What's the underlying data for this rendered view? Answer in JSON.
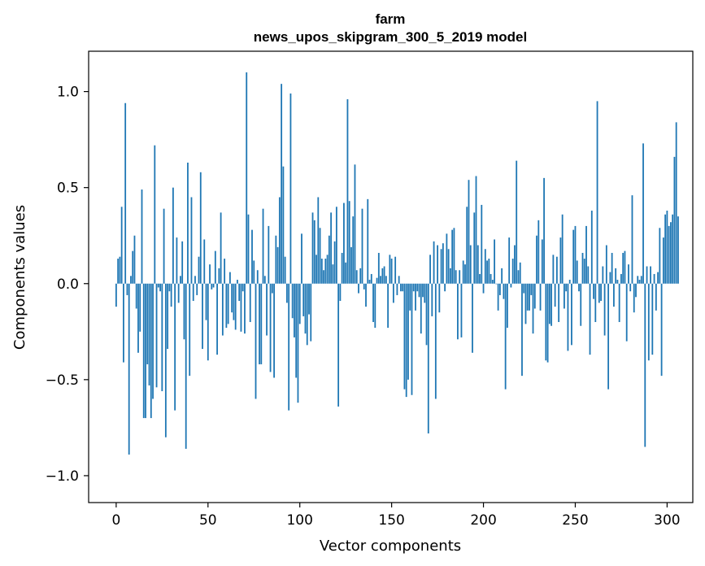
{
  "chart_data": {
    "type": "bar",
    "title_line1": "farm",
    "title_line2": "news_upos_skipgram_300_5_2019 model",
    "xlabel": "Vector components",
    "ylabel": "Components values",
    "xlim": [
      -15,
      314
    ],
    "ylim": [
      -1.14,
      1.21
    ],
    "xticks": [
      0,
      50,
      100,
      150,
      200,
      250,
      300
    ],
    "xtick_labels": [
      "0",
      "50",
      "100",
      "150",
      "200",
      "250",
      "300"
    ],
    "yticks": [
      -1.0,
      -0.5,
      0.0,
      0.5,
      1.0
    ],
    "ytick_labels": [
      "−1.0",
      "−0.5",
      "0.0",
      "0.5",
      "1.0"
    ],
    "bar_color": "#1f77b4",
    "grid": false,
    "values": [
      -0.12,
      0.13,
      0.14,
      0.4,
      -0.41,
      0.94,
      -0.06,
      -0.89,
      0.04,
      0.17,
      0.25,
      -0.13,
      -0.36,
      -0.25,
      0.49,
      -0.7,
      -0.7,
      -0.42,
      -0.53,
      -0.7,
      -0.6,
      0.72,
      -0.54,
      -0.02,
      -0.04,
      -0.56,
      0.39,
      -0.8,
      -0.34,
      -0.04,
      -0.12,
      0.5,
      -0.66,
      0.24,
      -0.1,
      0.04,
      0.22,
      -0.29,
      -0.86,
      0.63,
      -0.48,
      0.45,
      -0.09,
      0.04,
      -0.06,
      0.14,
      0.58,
      -0.34,
      0.23,
      -0.19,
      -0.4,
      0.1,
      -0.03,
      -0.02,
      0.17,
      -0.37,
      0.08,
      0.37,
      -0.27,
      0.13,
      -0.23,
      -0.21,
      0.06,
      -0.15,
      -0.19,
      -0.24,
      0.02,
      -0.09,
      -0.25,
      -0.04,
      -0.26,
      1.1,
      0.36,
      -0.2,
      0.28,
      0.12,
      -0.6,
      0.07,
      -0.42,
      -0.42,
      0.39,
      0.04,
      -0.27,
      0.3,
      -0.46,
      -0.05,
      -0.49,
      0.25,
      0.19,
      0.45,
      1.04,
      0.61,
      0.14,
      -0.1,
      -0.66,
      0.99,
      -0.18,
      -0.28,
      -0.49,
      -0.62,
      -0.21,
      0.26,
      -0.17,
      -0.26,
      -0.32,
      -0.16,
      -0.3,
      0.37,
      0.33,
      0.15,
      0.45,
      0.29,
      0.13,
      0.07,
      0.13,
      0.15,
      0.25,
      0.37,
      0.1,
      0.22,
      0.4,
      -0.64,
      -0.09,
      0.16,
      0.42,
      0.11,
      0.96,
      0.43,
      0.19,
      0.35,
      0.62,
      0.07,
      -0.05,
      0.08,
      0.39,
      -0.03,
      -0.12,
      0.44,
      0.02,
      0.05,
      -0.2,
      -0.23,
      0.03,
      0.16,
      0.04,
      0.08,
      0.09,
      0.04,
      -0.23,
      0.15,
      0.13,
      -0.1,
      0.14,
      -0.06,
      0.04,
      -0.04,
      -0.04,
      -0.55,
      -0.59,
      -0.5,
      -0.14,
      -0.58,
      -0.04,
      -0.14,
      -0.04,
      -0.07,
      -0.26,
      -0.07,
      -0.1,
      -0.32,
      -0.78,
      0.15,
      -0.17,
      0.22,
      -0.6,
      0.2,
      -0.15,
      0.18,
      0.21,
      -0.04,
      0.26,
      0.18,
      0.08,
      0.28,
      0.29,
      0.07,
      -0.29,
      0.07,
      -0.28,
      0.12,
      0.1,
      0.4,
      0.54,
      0.2,
      -0.36,
      0.37,
      0.56,
      0.2,
      0.05,
      0.41,
      -0.05,
      0.18,
      0.12,
      0.13,
      0.05,
      0.02,
      0.23,
      0.0,
      -0.14,
      -0.06,
      0.08,
      -0.08,
      -0.55,
      -0.23,
      0.24,
      -0.02,
      0.13,
      0.2,
      0.64,
      0.07,
      0.11,
      -0.48,
      -0.05,
      -0.21,
      -0.14,
      -0.14,
      -0.06,
      -0.26,
      -0.13,
      0.25,
      0.33,
      -0.14,
      0.23,
      0.55,
      -0.4,
      -0.41,
      -0.21,
      -0.22,
      0.15,
      -0.12,
      0.14,
      -0.2,
      0.24,
      0.36,
      -0.13,
      -0.04,
      -0.35,
      0.02,
      -0.32,
      0.28,
      0.3,
      0.12,
      -0.04,
      -0.22,
      0.16,
      0.13,
      0.3,
      0.09,
      -0.37,
      0.38,
      -0.08,
      -0.2,
      0.95,
      -0.1,
      -0.09,
      0.09,
      -0.27,
      0.2,
      -0.55,
      0.06,
      0.16,
      -0.12,
      0.08,
      0.02,
      -0.2,
      0.05,
      0.16,
      0.17,
      -0.3,
      0.1,
      -0.04,
      0.46,
      -0.15,
      -0.07,
      0.04,
      0.02,
      0.04,
      0.73,
      -0.85,
      0.09,
      -0.4,
      0.09,
      -0.37,
      0.05,
      -0.14,
      0.06,
      0.29,
      -0.48,
      0.24,
      0.36,
      0.38,
      0.3,
      0.32,
      0.36,
      0.66,
      0.84,
      0.35
    ]
  }
}
